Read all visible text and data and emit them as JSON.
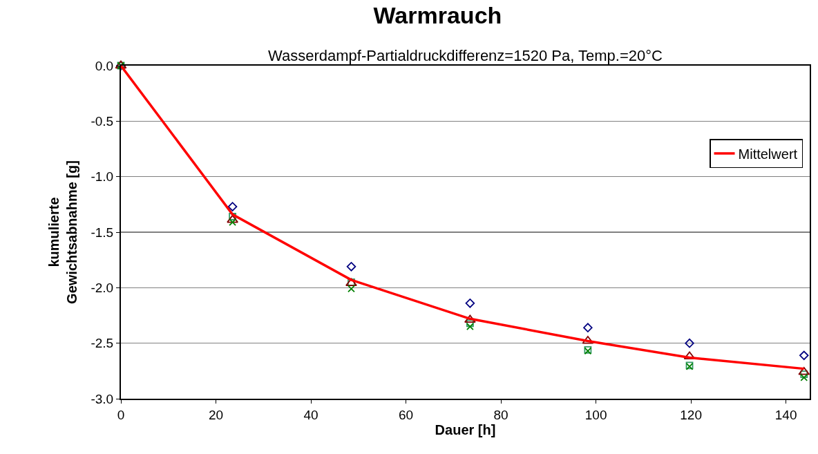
{
  "chart_data": {
    "type": "scatter",
    "title": "Warmrauch",
    "subtitle": "Wasserdampf-Partialdruckdifferenz=1520 Pa, Temp.=20°C",
    "xlabel": "Dauer [h]",
    "ylabel": "kumulierte\nGewichtsabnahme [g]",
    "x": [
      0,
      23.5,
      48.5,
      73.5,
      98.3,
      119.7,
      143.8
    ],
    "series": [
      {
        "color": "#000080",
        "marker": "diamond",
        "values": [
          0,
          -1.27,
          -1.81,
          -2.14,
          -2.36,
          -2.5,
          -2.61
        ]
      },
      {
        "color": "#339966",
        "marker": "square",
        "values": [
          0,
          -1.36,
          -1.95,
          -2.32,
          -2.56,
          -2.7,
          -2.78
        ]
      },
      {
        "color": "#800000",
        "marker": "triangle",
        "values": [
          0,
          -1.39,
          -1.96,
          -2.29,
          -2.48,
          -2.62,
          -2.76
        ]
      },
      {
        "color": "#008000",
        "marker": "cross",
        "values": [
          0,
          -1.41,
          -2.01,
          -2.35,
          -2.57,
          -2.71,
          -2.81
        ]
      },
      {
        "name": "Mittelwert",
        "type": "line",
        "marker": "none",
        "line_style": "solid",
        "color": "#ff0000",
        "values": [
          0,
          -1.34,
          -1.93,
          -2.28,
          -2.48,
          -2.63,
          -2.73
        ]
      }
    ],
    "xlim": [
      0,
      145
    ],
    "xticks": [
      0,
      20,
      40,
      60,
      80,
      100,
      120,
      140
    ],
    "ylim": [
      -3,
      0
    ],
    "yticks": [
      {
        "value": -3,
        "label": "-3.0"
      },
      {
        "value": -2.5,
        "label": "-2.5"
      },
      {
        "value": -2,
        "label": "-2.0"
      },
      {
        "value": -1.5,
        "label": "-1.5"
      },
      {
        "value": -1,
        "label": "-1.0"
      },
      {
        "value": -0.5,
        "label": "-0.5"
      },
      {
        "value": 0,
        "label": "0.0"
      }
    ],
    "grid": "y",
    "legend": "top right"
  }
}
